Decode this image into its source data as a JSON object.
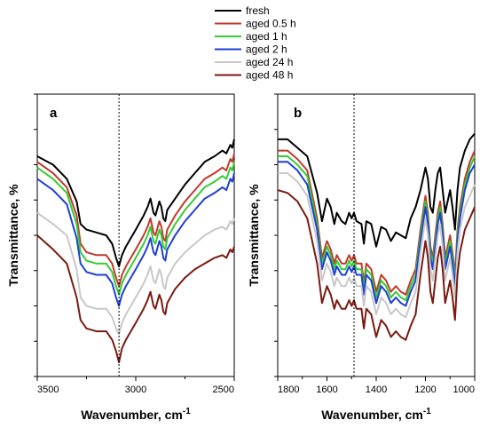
{
  "chart_data": [
    {
      "type": "line",
      "panel_label": "a",
      "xlabel": "Wavenumber, cm",
      "xlabel_sup": "-1",
      "ylabel": "Transmittance, %",
      "xlim": [
        3500,
        2500
      ],
      "x_reversed": true,
      "xticks": [
        3500,
        3000,
        2500
      ],
      "xtick_labels": [
        "3500",
        "3000",
        "2500"
      ],
      "reference_line_x": 3085,
      "y_units": "arbitrary",
      "ylim": [
        0,
        100
      ],
      "series": [
        {
          "name": "fresh",
          "color": "#000000",
          "x": [
            3500,
            3420,
            3350,
            3300,
            3280,
            3250,
            3200,
            3150,
            3120,
            3100,
            3085,
            3070,
            3050,
            3000,
            2960,
            2940,
            2925,
            2910,
            2900,
            2880,
            2870,
            2860,
            2850,
            2840,
            2800,
            2750,
            2700,
            2650,
            2600,
            2560,
            2540,
            2520,
            2510,
            2500
          ],
          "y": [
            78,
            75,
            70,
            62,
            54,
            52,
            51,
            50,
            47,
            42,
            39,
            43,
            46,
            52,
            57,
            60,
            63,
            58,
            57,
            62,
            60,
            56,
            55,
            59,
            63,
            68,
            72,
            76,
            78,
            80,
            79,
            82,
            81,
            84
          ]
        },
        {
          "name": "aged 0.5 h",
          "color": "#c0392b",
          "x": [
            3500,
            3420,
            3350,
            3300,
            3280,
            3250,
            3200,
            3150,
            3120,
            3100,
            3085,
            3070,
            3050,
            3000,
            2960,
            2940,
            2925,
            2910,
            2900,
            2880,
            2870,
            2860,
            2850,
            2840,
            2800,
            2750,
            2700,
            2650,
            2600,
            2560,
            2540,
            2520,
            2510,
            2500
          ],
          "y": [
            76,
            72,
            67,
            57,
            47,
            44,
            43,
            43,
            40,
            35,
            32,
            36,
            39,
            45,
            50,
            53,
            56,
            51,
            50,
            55,
            53,
            49,
            48,
            52,
            57,
            62,
            66,
            70,
            72,
            74,
            73,
            77,
            76,
            79
          ]
        },
        {
          "name": "aged 1 h",
          "color": "#33cc33",
          "x": [
            3500,
            3420,
            3350,
            3300,
            3280,
            3250,
            3200,
            3150,
            3120,
            3100,
            3085,
            3070,
            3050,
            3000,
            2960,
            2940,
            2925,
            2910,
            2900,
            2880,
            2870,
            2860,
            2850,
            2840,
            2800,
            2750,
            2700,
            2650,
            2600,
            2560,
            2540,
            2520,
            2510,
            2500
          ],
          "y": [
            74,
            70,
            65,
            54,
            44,
            41,
            40,
            40,
            37,
            32,
            29,
            33,
            36,
            42,
            47,
            50,
            53,
            48,
            47,
            52,
            50,
            46,
            45,
            49,
            54,
            59,
            63,
            67,
            69,
            71,
            70,
            74,
            73,
            76
          ]
        },
        {
          "name": "aged 2 h",
          "color": "#1f3fd6",
          "x": [
            3500,
            3420,
            3350,
            3300,
            3280,
            3250,
            3200,
            3150,
            3120,
            3100,
            3085,
            3070,
            3050,
            3000,
            2960,
            2940,
            2925,
            2910,
            2900,
            2880,
            2870,
            2860,
            2850,
            2840,
            2800,
            2750,
            2700,
            2650,
            2600,
            2560,
            2540,
            2520,
            2510,
            2500
          ],
          "y": [
            70,
            66,
            61,
            49,
            40,
            37,
            36,
            36,
            33,
            28,
            25,
            29,
            32,
            38,
            43,
            46,
            49,
            44,
            43,
            48,
            46,
            42,
            41,
            45,
            50,
            55,
            59,
            63,
            65,
            67,
            66,
            70,
            69,
            72
          ]
        },
        {
          "name": "aged 24 h",
          "color": "#c8c8c8",
          "x": [
            3500,
            3420,
            3350,
            3300,
            3280,
            3250,
            3200,
            3150,
            3120,
            3100,
            3085,
            3070,
            3050,
            3000,
            2960,
            2940,
            2925,
            2910,
            2900,
            2880,
            2870,
            2860,
            2850,
            2840,
            2800,
            2750,
            2700,
            2650,
            2600,
            2560,
            2540,
            2520,
            2510,
            2500
          ],
          "y": [
            58,
            54,
            50,
            38,
            28,
            25,
            24,
            24,
            21,
            17,
            15,
            19,
            22,
            28,
            33,
            36,
            39,
            34,
            33,
            38,
            36,
            32,
            31,
            35,
            40,
            44,
            47,
            50,
            52,
            53,
            52,
            55,
            54,
            56
          ]
        },
        {
          "name": "aged 48 h",
          "color": "#7a1a10",
          "x": [
            3500,
            3420,
            3350,
            3300,
            3280,
            3250,
            3200,
            3150,
            3120,
            3100,
            3085,
            3070,
            3050,
            3000,
            2960,
            2940,
            2925,
            2910,
            2900,
            2880,
            2870,
            2860,
            2850,
            2840,
            2800,
            2750,
            2700,
            2650,
            2600,
            2560,
            2540,
            2520,
            2510,
            2500
          ],
          "y": [
            50,
            45,
            40,
            28,
            20,
            17,
            16,
            16,
            13,
            9,
            5,
            10,
            13,
            19,
            24,
            27,
            30,
            25,
            24,
            29,
            27,
            23,
            22,
            26,
            31,
            35,
            38,
            40,
            42,
            43,
            42,
            45,
            44,
            46
          ]
        }
      ]
    },
    {
      "type": "line",
      "panel_label": "b",
      "xlabel": "Wavenumber, cm",
      "xlabel_sup": "-1",
      "ylabel": "Transmittance, %",
      "xlim": [
        1800,
        1000
      ],
      "x_reversed": true,
      "xticks": [
        1800,
        1600,
        1400,
        1200,
        1000
      ],
      "xtick_labels": [
        "1800",
        "1600",
        "1400",
        "1200",
        "1000"
      ],
      "reference_line_x": 1490,
      "y_units": "arbitrary",
      "ylim": [
        0,
        100
      ],
      "series": [
        {
          "name": "fresh",
          "color": "#000000",
          "x": [
            1800,
            1760,
            1720,
            1680,
            1640,
            1620,
            1600,
            1585,
            1570,
            1560,
            1540,
            1525,
            1510,
            1500,
            1490,
            1480,
            1460,
            1450,
            1440,
            1420,
            1400,
            1380,
            1360,
            1340,
            1320,
            1300,
            1280,
            1260,
            1240,
            1220,
            1200,
            1190,
            1180,
            1170,
            1160,
            1150,
            1140,
            1130,
            1120,
            1100,
            1090,
            1080,
            1070,
            1060,
            1040,
            1020,
            1000
          ],
          "y": [
            84,
            84,
            81,
            78,
            65,
            55,
            63,
            60,
            54,
            58,
            55,
            54,
            58,
            56,
            58,
            55,
            54,
            47,
            55,
            54,
            46,
            53,
            52,
            48,
            51,
            50,
            49,
            56,
            60,
            66,
            74,
            70,
            60,
            58,
            66,
            72,
            74,
            66,
            58,
            66,
            60,
            52,
            66,
            74,
            80,
            84,
            86
          ]
        },
        {
          "name": "aged 0.5 h",
          "color": "#c0392b",
          "x": [
            1800,
            1760,
            1720,
            1680,
            1640,
            1620,
            1600,
            1585,
            1570,
            1560,
            1540,
            1525,
            1510,
            1500,
            1490,
            1480,
            1460,
            1450,
            1440,
            1420,
            1400,
            1380,
            1360,
            1340,
            1320,
            1300,
            1280,
            1260,
            1240,
            1220,
            1200,
            1190,
            1180,
            1170,
            1160,
            1150,
            1140,
            1130,
            1120,
            1100,
            1090,
            1080,
            1070,
            1060,
            1040,
            1020,
            1000
          ],
          "y": [
            80,
            80,
            77,
            73,
            56,
            42,
            48,
            45,
            40,
            43,
            40,
            40,
            43,
            41,
            43,
            40,
            40,
            33,
            40,
            38,
            30,
            36,
            34,
            30,
            32,
            30,
            29,
            34,
            38,
            52,
            64,
            58,
            46,
            42,
            50,
            58,
            62,
            54,
            42,
            50,
            44,
            36,
            52,
            60,
            70,
            76,
            80
          ]
        },
        {
          "name": "aged 1 h",
          "color": "#33cc33",
          "x": [
            1800,
            1760,
            1720,
            1680,
            1640,
            1620,
            1600,
            1585,
            1570,
            1560,
            1540,
            1525,
            1510,
            1500,
            1490,
            1480,
            1460,
            1450,
            1440,
            1420,
            1400,
            1380,
            1360,
            1340,
            1320,
            1300,
            1280,
            1260,
            1240,
            1220,
            1200,
            1190,
            1180,
            1170,
            1160,
            1150,
            1140,
            1130,
            1120,
            1100,
            1090,
            1080,
            1070,
            1060,
            1040,
            1020,
            1000
          ],
          "y": [
            78,
            78,
            75,
            71,
            54,
            40,
            46,
            43,
            38,
            41,
            38,
            38,
            41,
            39,
            41,
            38,
            38,
            31,
            38,
            36,
            28,
            34,
            32,
            28,
            30,
            28,
            27,
            32,
            36,
            50,
            62,
            56,
            44,
            40,
            48,
            56,
            60,
            52,
            40,
            48,
            42,
            34,
            50,
            58,
            68,
            74,
            78
          ]
        },
        {
          "name": "aged 2 h",
          "color": "#1f3fd6",
          "x": [
            1800,
            1760,
            1720,
            1680,
            1640,
            1620,
            1600,
            1585,
            1570,
            1560,
            1540,
            1525,
            1510,
            1500,
            1490,
            1480,
            1460,
            1450,
            1440,
            1420,
            1400,
            1380,
            1360,
            1340,
            1320,
            1300,
            1280,
            1260,
            1240,
            1220,
            1200,
            1190,
            1180,
            1170,
            1160,
            1150,
            1140,
            1130,
            1120,
            1100,
            1090,
            1080,
            1070,
            1060,
            1040,
            1020,
            1000
          ],
          "y": [
            76,
            76,
            73,
            68,
            52,
            38,
            44,
            41,
            36,
            39,
            36,
            36,
            39,
            37,
            39,
            36,
            36,
            29,
            36,
            34,
            26,
            32,
            30,
            26,
            28,
            26,
            25,
            30,
            34,
            48,
            60,
            54,
            42,
            38,
            46,
            54,
            58,
            50,
            38,
            46,
            40,
            32,
            48,
            56,
            66,
            72,
            75
          ]
        },
        {
          "name": "aged 24 h",
          "color": "#c8c8c8",
          "x": [
            1800,
            1760,
            1720,
            1680,
            1640,
            1620,
            1600,
            1585,
            1570,
            1560,
            1540,
            1525,
            1510,
            1500,
            1490,
            1480,
            1460,
            1450,
            1440,
            1420,
            1400,
            1380,
            1360,
            1340,
            1320,
            1300,
            1280,
            1260,
            1240,
            1220,
            1200,
            1190,
            1180,
            1170,
            1160,
            1150,
            1140,
            1130,
            1120,
            1100,
            1090,
            1080,
            1070,
            1060,
            1040,
            1020,
            1000
          ],
          "y": [
            72,
            72,
            69,
            64,
            48,
            34,
            40,
            37,
            32,
            35,
            32,
            32,
            35,
            33,
            35,
            32,
            32,
            25,
            32,
            30,
            22,
            28,
            26,
            22,
            24,
            22,
            21,
            26,
            30,
            44,
            56,
            50,
            38,
            34,
            42,
            50,
            54,
            46,
            34,
            42,
            36,
            28,
            44,
            52,
            60,
            64,
            68
          ]
        },
        {
          "name": "aged 48 h",
          "color": "#7a1a10",
          "x": [
            1800,
            1760,
            1720,
            1680,
            1640,
            1620,
            1600,
            1585,
            1570,
            1560,
            1540,
            1525,
            1510,
            1500,
            1490,
            1480,
            1460,
            1450,
            1440,
            1420,
            1400,
            1380,
            1360,
            1340,
            1320,
            1300,
            1280,
            1260,
            1240,
            1220,
            1200,
            1190,
            1180,
            1170,
            1160,
            1150,
            1140,
            1130,
            1120,
            1100,
            1090,
            1080,
            1070,
            1060,
            1040,
            1020,
            1000
          ],
          "y": [
            66,
            65,
            62,
            56,
            40,
            26,
            32,
            29,
            24,
            27,
            24,
            24,
            27,
            25,
            27,
            24,
            24,
            17,
            24,
            22,
            14,
            20,
            18,
            14,
            16,
            14,
            13,
            18,
            22,
            36,
            48,
            42,
            30,
            26,
            34,
            42,
            46,
            38,
            26,
            34,
            28,
            20,
            36,
            44,
            52,
            56,
            60
          ]
        }
      ]
    }
  ],
  "legend": {
    "position": "top-center",
    "entries": [
      {
        "label": "fresh",
        "color": "#000000"
      },
      {
        "label": "aged 0.5 h",
        "color": "#c0392b"
      },
      {
        "label": "aged 1 h",
        "color": "#33cc33"
      },
      {
        "label": "aged 2 h",
        "color": "#1f3fd6"
      },
      {
        "label": "aged 24 h",
        "color": "#c8c8c8"
      },
      {
        "label": "aged 48 h",
        "color": "#7a1a10"
      }
    ]
  }
}
